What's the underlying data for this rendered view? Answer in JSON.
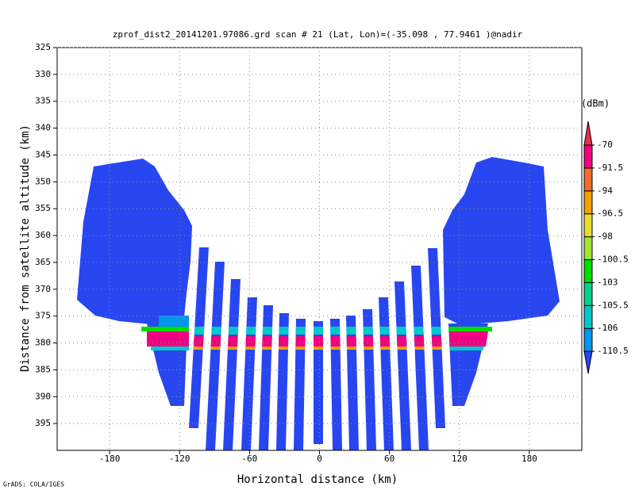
{
  "chart_data": {
    "type": "heatmap",
    "title": "zprof_dist2_20141201.97086.grd  scan # 21  (Lat, Lon)=(-35.098 , 77.9461 )@nadir",
    "xlabel": "Horizontal distance (km)",
    "ylabel": "Distance from satellite altitude (km)",
    "xlim": [
      -225,
      225
    ],
    "xticks": [
      -180,
      -120,
      -60,
      0,
      60,
      120,
      180
    ],
    "ylim": [
      325,
      400
    ],
    "yticks": [
      325,
      330,
      335,
      340,
      345,
      350,
      355,
      360,
      365,
      370,
      375,
      380,
      385,
      390,
      395
    ],
    "y_reversed": true,
    "grid": true,
    "colorbar": {
      "label": "(dBm)",
      "levels": [
        -110.5,
        -106,
        -105.5,
        -103,
        -100.5,
        -98,
        -96.5,
        -94,
        -91.5,
        -70
      ],
      "colors": [
        "#2846f0",
        "#0096f0",
        "#00c8c8",
        "#00d28c",
        "#00dc00",
        "#a0e632",
        "#e6dc32",
        "#f0a000",
        "#f06e28",
        "#f00082",
        "#e6324a"
      ]
    },
    "footer": "GrADS: COLA/IGES"
  }
}
